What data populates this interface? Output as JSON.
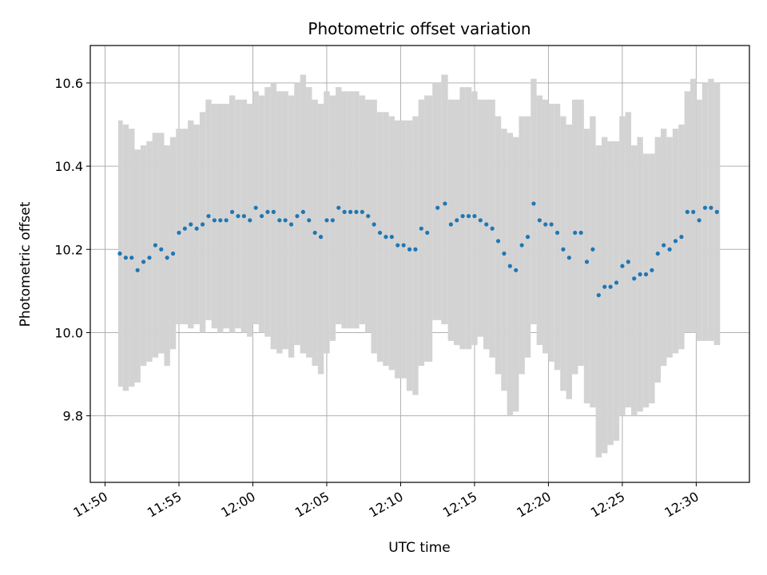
{
  "chart_data": {
    "type": "scatter",
    "title": "Photometric offset variation",
    "xlabel": "UTC time",
    "ylabel": "Photometric offset",
    "x_unit": "minutes",
    "xlim": [
      "11:49",
      "12:33.6"
    ],
    "ylim": [
      9.64,
      10.69
    ],
    "xticks": [
      "11:50",
      "11:55",
      "12:00",
      "12:05",
      "12:10",
      "12:15",
      "12:20",
      "12:25",
      "12:30"
    ],
    "yticks": [
      9.8,
      10.0,
      10.2,
      10.4,
      10.6
    ],
    "ytick_labels": [
      "9.8",
      "10.0",
      "10.2",
      "10.4",
      "10.6"
    ],
    "grid": true,
    "colors": {
      "points": "#1f77b4",
      "error_band": "#d3d3d3",
      "grid": "#b0b0b0"
    },
    "series": [
      {
        "x": [
          "11:51.0",
          "11:51.4",
          "11:51.8",
          "11:52.2",
          "11:52.6",
          "11:53.0",
          "11:53.4",
          "11:53.8",
          "11:54.2",
          "11:54.6",
          "11:55.0",
          "11:55.4",
          "11:55.8",
          "11:56.2",
          "11:56.6",
          "11:57.0",
          "11:57.4",
          "11:57.8",
          "11:58.2",
          "11:58.6",
          "11:59.0",
          "11:59.4",
          "11:59.8",
          "12:00.2",
          "12:00.6",
          "12:01.0",
          "12:01.4",
          "12:01.8",
          "12:02.2",
          "12:02.6",
          "12:03.0",
          "12:03.4",
          "12:03.8",
          "12:04.2",
          "12:04.6",
          "12:05.0",
          "12:05.4",
          "12:05.8",
          "12:06.2",
          "12:06.6",
          "12:07.0",
          "12:07.4",
          "12:07.8",
          "12:08.2",
          "12:08.6",
          "12:09.0",
          "12:09.4",
          "12:09.8",
          "12:10.2",
          "12:10.6",
          "12:11.0",
          "12:11.4",
          "12:11.8",
          "12:12.5",
          "12:13.0",
          "12:13.4",
          "12:13.8",
          "12:14.2",
          "12:14.6",
          "12:15.0",
          "12:15.4",
          "12:15.8",
          "12:16.2",
          "12:16.6",
          "12:17.0",
          "12:17.4",
          "12:17.8",
          "12:18.2",
          "12:18.6",
          "12:19.0",
          "12:19.4",
          "12:19.8",
          "12:20.2",
          "12:20.6",
          "12:21.0",
          "12:21.4",
          "12:21.8",
          "12:22.2",
          "12:22.6",
          "12:23.0",
          "12:23.4",
          "12:23.8",
          "12:24.2",
          "12:24.6",
          "12:25.0",
          "12:25.4",
          "12:25.8",
          "12:26.2",
          "12:26.6",
          "12:27.0",
          "12:27.4",
          "12:27.8",
          "12:28.2",
          "12:28.6",
          "12:29.0",
          "12:29.4",
          "12:29.8",
          "12:30.2",
          "12:30.6",
          "12:31.0",
          "12:31.4"
        ],
        "y": [
          10.19,
          10.18,
          10.18,
          10.15,
          10.17,
          10.18,
          10.21,
          10.2,
          10.18,
          10.19,
          10.24,
          10.25,
          10.26,
          10.25,
          10.26,
          10.28,
          10.27,
          10.27,
          10.27,
          10.29,
          10.28,
          10.28,
          10.27,
          10.3,
          10.28,
          10.29,
          10.29,
          10.27,
          10.27,
          10.26,
          10.28,
          10.29,
          10.27,
          10.24,
          10.23,
          10.27,
          10.27,
          10.3,
          10.29,
          10.29,
          10.29,
          10.29,
          10.28,
          10.26,
          10.24,
          10.23,
          10.23,
          10.21,
          10.21,
          10.2,
          10.2,
          10.25,
          10.24,
          10.3,
          10.31,
          10.26,
          10.27,
          10.28,
          10.28,
          10.28,
          10.27,
          10.26,
          10.25,
          10.22,
          10.19,
          10.16,
          10.15,
          10.21,
          10.23,
          10.31,
          10.27,
          10.26,
          10.26,
          10.24,
          10.2,
          10.18,
          10.24,
          10.24,
          10.17,
          10.2,
          10.09,
          10.11,
          10.11,
          10.12,
          10.16,
          10.17,
          10.13,
          10.14,
          10.14,
          10.15,
          10.19,
          10.21,
          10.2,
          10.22,
          10.23,
          10.29,
          10.29,
          10.27,
          10.3,
          10.3,
          10.29
        ],
        "ylow": [
          9.87,
          9.86,
          9.87,
          9.88,
          9.92,
          9.93,
          9.94,
          9.95,
          9.92,
          9.96,
          10.02,
          10.02,
          10.01,
          10.02,
          10.0,
          10.03,
          10.01,
          10.0,
          10.01,
          10.0,
          10.01,
          10.0,
          9.99,
          10.02,
          10.0,
          9.99,
          9.96,
          9.95,
          9.96,
          9.94,
          9.97,
          9.95,
          9.94,
          9.92,
          9.9,
          9.95,
          9.98,
          10.02,
          10.01,
          10.01,
          10.01,
          10.02,
          10.0,
          9.95,
          9.93,
          9.92,
          9.91,
          9.89,
          9.89,
          9.86,
          9.85,
          9.92,
          9.93,
          10.03,
          10.02,
          9.98,
          9.97,
          9.96,
          9.96,
          9.97,
          9.99,
          9.96,
          9.94,
          9.9,
          9.86,
          9.8,
          9.81,
          9.9,
          9.94,
          10.02,
          9.97,
          9.95,
          9.93,
          9.91,
          9.86,
          9.84,
          9.9,
          9.92,
          9.83,
          9.82,
          9.7,
          9.71,
          9.73,
          9.74,
          9.8,
          9.82,
          9.8,
          9.81,
          9.82,
          9.83,
          9.88,
          9.92,
          9.94,
          9.95,
          9.96,
          10.0,
          10.0,
          9.98,
          9.98,
          9.98,
          9.97
        ],
        "yhigh": [
          10.51,
          10.5,
          10.49,
          10.44,
          10.45,
          10.46,
          10.48,
          10.48,
          10.45,
          10.47,
          10.49,
          10.49,
          10.51,
          10.5,
          10.53,
          10.56,
          10.55,
          10.55,
          10.55,
          10.57,
          10.56,
          10.56,
          10.55,
          10.58,
          10.57,
          10.59,
          10.6,
          10.58,
          10.58,
          10.57,
          10.6,
          10.62,
          10.59,
          10.56,
          10.55,
          10.58,
          10.57,
          10.59,
          10.58,
          10.58,
          10.58,
          10.57,
          10.56,
          10.56,
          10.53,
          10.53,
          10.52,
          10.51,
          10.51,
          10.51,
          10.52,
          10.56,
          10.57,
          10.6,
          10.62,
          10.56,
          10.56,
          10.59,
          10.59,
          10.58,
          10.56,
          10.56,
          10.56,
          10.52,
          10.49,
          10.48,
          10.47,
          10.52,
          10.52,
          10.61,
          10.57,
          10.56,
          10.55,
          10.55,
          10.52,
          10.5,
          10.56,
          10.56,
          10.49,
          10.52,
          10.45,
          10.47,
          10.46,
          10.46,
          10.52,
          10.53,
          10.45,
          10.47,
          10.43,
          10.43,
          10.47,
          10.49,
          10.47,
          10.49,
          10.5,
          10.58,
          10.61,
          10.56,
          10.6,
          10.61,
          10.6
        ]
      }
    ]
  }
}
